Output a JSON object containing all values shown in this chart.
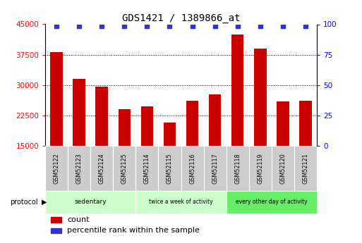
{
  "title": "GDS1421 / 1389866_at",
  "samples": [
    "GSM52122",
    "GSM52123",
    "GSM52124",
    "GSM52125",
    "GSM52114",
    "GSM52115",
    "GSM52116",
    "GSM52117",
    "GSM52118",
    "GSM52119",
    "GSM52120",
    "GSM52121"
  ],
  "counts": [
    38200,
    31500,
    29600,
    24000,
    24800,
    20800,
    26200,
    27800,
    42500,
    39000,
    26000,
    26200
  ],
  "ylim_left": [
    15000,
    45000
  ],
  "ylim_right": [
    0,
    100
  ],
  "yticks_left": [
    15000,
    22500,
    30000,
    37500,
    45000
  ],
  "yticks_right": [
    0,
    25,
    50,
    75,
    100
  ],
  "bar_color": "#cc0000",
  "dot_color": "#3333cc",
  "groups": [
    {
      "label": "sedentary",
      "start": 0,
      "end": 3,
      "color": "#ccffcc"
    },
    {
      "label": "twice a week of activity",
      "start": 4,
      "end": 7,
      "color": "#ccffcc"
    },
    {
      "label": "every other day of activity",
      "start": 8,
      "end": 11,
      "color": "#66ee66"
    }
  ],
  "sample_box_color": "#cccccc",
  "protocol_label": "protocol",
  "legend_count_label": "count",
  "legend_pct_label": "percentile rank within the sample",
  "bg_color": "#ffffff",
  "bar_width": 0.55
}
